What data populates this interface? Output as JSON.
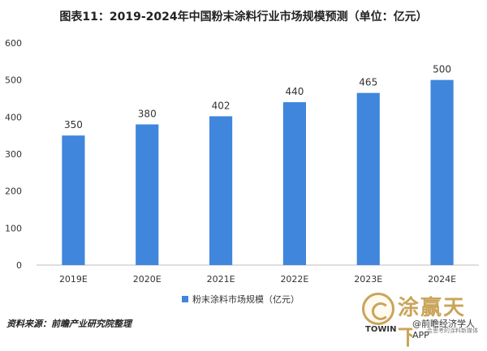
{
  "chart_data": {
    "type": "bar",
    "title": "图表11：2019-2024年中国粉末涂料行业市场规模预测（单位：亿元）",
    "categories": [
      "2019E",
      "2020E",
      "2021E",
      "2022E",
      "2023E",
      "2024E"
    ],
    "series": [
      {
        "name": "粉末涂料市场规模（亿元）",
        "values": [
          350,
          380,
          402,
          440,
          465,
          500
        ]
      }
    ],
    "ylim": [
      0,
      600
    ],
    "yticks": [
      0,
      100,
      200,
      300,
      400,
      500,
      600
    ],
    "xlabel": "",
    "ylabel": "",
    "grid": false,
    "legend": "bottom",
    "bar_color": "#3f86dc"
  },
  "source": "资料来源：前瞻产业研究院整理",
  "logo": {
    "name_cn": "涂赢天下",
    "app_label": "@前瞻经济学人APP",
    "name_en": "TOWIN",
    "tagline": "会思考的涂料新媒体"
  }
}
